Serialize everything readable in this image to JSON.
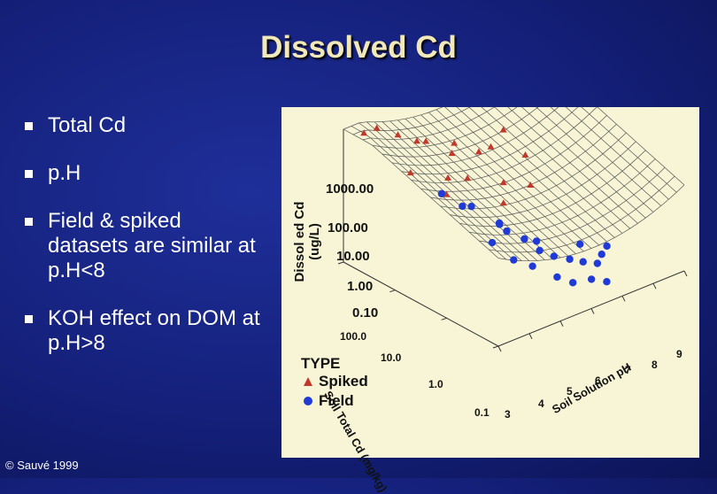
{
  "slide": {
    "title": "Dissolved Cd",
    "bullets": [
      "Total Cd",
      "p.H",
      "Field & spiked datasets are similar at p.H<8",
      "KOH effect on DOM at p.H>8"
    ],
    "footer": "© Sauvé 1999"
  },
  "colors": {
    "spiked": "#c0392b",
    "field": "#1f3ad6",
    "background": "#14207a",
    "title": "#f3e8b8"
  },
  "chart_data": {
    "type": "scatter",
    "subtype": "3d-surface-with-points",
    "zlabel": "Dissol ed Cd (ug/L)",
    "z_ticks": [
      "1000.00",
      "100.00",
      "10.00",
      "1.00",
      "0.10"
    ],
    "z_scale": "log",
    "xlabel": "Soil Solution pH",
    "x_ticks": [
      "3",
      "4",
      "5",
      "6",
      "7",
      "8",
      "9"
    ],
    "ylabel": "Soil Total Cd (mg/kg)",
    "y_ticks": [
      "100.0",
      "10.0",
      "1.0",
      "0.1"
    ],
    "y_scale": "log",
    "legend": {
      "title": "TYPE",
      "entries": [
        "Spiked",
        "Field"
      ],
      "placement": "bottom-left"
    },
    "series": [
      {
        "name": "Spiked",
        "marker": "triangle",
        "color": "#c0392b",
        "points": [
          {
            "ph": 3.5,
            "total_cd": 80,
            "cd": 600
          },
          {
            "ph": 4.0,
            "total_cd": 90,
            "cd": 500
          },
          {
            "ph": 4.5,
            "total_cd": 70,
            "cd": 250
          },
          {
            "ph": 5.0,
            "total_cd": 60,
            "cd": 120
          },
          {
            "ph": 5.5,
            "total_cd": 80,
            "cd": 60
          },
          {
            "ph": 6.0,
            "total_cd": 50,
            "cd": 25
          },
          {
            "ph": 6.5,
            "total_cd": 90,
            "cd": 20
          },
          {
            "ph": 7.0,
            "total_cd": 60,
            "cd": 10
          },
          {
            "ph": 7.5,
            "total_cd": 70,
            "cd": 8
          },
          {
            "ph": 8.0,
            "total_cd": 80,
            "cd": 15
          },
          {
            "ph": 8.5,
            "total_cd": 90,
            "cd": 60
          },
          {
            "ph": 4.0,
            "total_cd": 20,
            "cd": 80
          },
          {
            "ph": 5.0,
            "total_cd": 15,
            "cd": 30
          },
          {
            "ph": 6.0,
            "total_cd": 25,
            "cd": 8
          },
          {
            "ph": 7.0,
            "total_cd": 20,
            "cd": 3
          },
          {
            "ph": 8.0,
            "total_cd": 30,
            "cd": 6
          },
          {
            "ph": 4.5,
            "total_cd": 8,
            "cd": 25
          },
          {
            "ph": 6.5,
            "total_cd": 10,
            "cd": 2
          },
          {
            "ph": 7.5,
            "total_cd": 12,
            "cd": 2.5
          }
        ]
      },
      {
        "name": "Field",
        "marker": "circle",
        "color": "#1f3ad6",
        "points": [
          {
            "ph": 4.0,
            "total_cd": 5,
            "cd": 60
          },
          {
            "ph": 4.3,
            "total_cd": 3,
            "cd": 30
          },
          {
            "ph": 4.8,
            "total_cd": 4,
            "cd": 15
          },
          {
            "ph": 5.2,
            "total_cd": 2,
            "cd": 6
          },
          {
            "ph": 5.5,
            "total_cd": 3,
            "cd": 3
          },
          {
            "ph": 5.8,
            "total_cd": 1.5,
            "cd": 1.5
          },
          {
            "ph": 6.0,
            "total_cd": 1,
            "cd": 0.8
          },
          {
            "ph": 6.3,
            "total_cd": 0.8,
            "cd": 0.5
          },
          {
            "ph": 6.6,
            "total_cd": 0.6,
            "cd": 0.4
          },
          {
            "ph": 6.9,
            "total_cd": 0.5,
            "cd": 0.3
          },
          {
            "ph": 7.2,
            "total_cd": 0.4,
            "cd": 0.25
          },
          {
            "ph": 7.5,
            "total_cd": 0.5,
            "cd": 0.3
          },
          {
            "ph": 7.8,
            "total_cd": 0.6,
            "cd": 0.35
          },
          {
            "ph": 5.0,
            "total_cd": 0.8,
            "cd": 1.2
          },
          {
            "ph": 5.4,
            "total_cd": 0.6,
            "cd": 0.7
          },
          {
            "ph": 5.9,
            "total_cd": 0.4,
            "cd": 0.3
          },
          {
            "ph": 6.2,
            "total_cd": 0.3,
            "cd": 0.2
          },
          {
            "ph": 6.8,
            "total_cd": 0.3,
            "cd": 0.15
          },
          {
            "ph": 7.0,
            "total_cd": 0.2,
            "cd": 0.15
          },
          {
            "ph": 4.6,
            "total_cd": 1.2,
            "cd": 4
          },
          {
            "ph": 5.6,
            "total_cd": 2.5,
            "cd": 2
          },
          {
            "ph": 6.4,
            "total_cd": 2,
            "cd": 0.6
          },
          {
            "ph": 7.3,
            "total_cd": 1,
            "cd": 0.4
          }
        ]
      }
    ]
  }
}
